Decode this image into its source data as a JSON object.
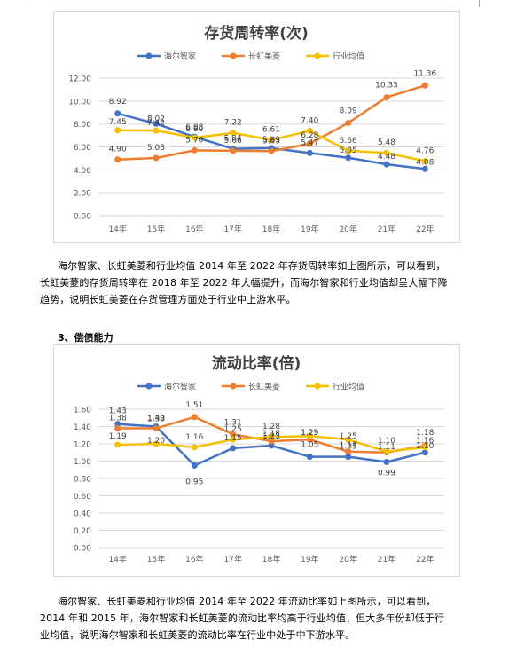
{
  "charts": [
    {
      "id": "inventory",
      "title": "存货周转率(次)",
      "yticks": [
        "0.00",
        "2.00",
        "4.00",
        "6.00",
        "8.00",
        "10.00",
        "12.00"
      ]
    },
    {
      "id": "current",
      "title": "流动比率(倍)",
      "yticks": [
        "0.00",
        "0.20",
        "0.40",
        "0.60",
        "0.80",
        "1.00",
        "1.20",
        "1.40",
        "1.60"
      ]
    }
  ],
  "chart_data": [
    {
      "type": "line",
      "title": "存货周转率(次)",
      "categories": [
        "14年",
        "15年",
        "16年",
        "17年",
        "18年",
        "19年",
        "20年",
        "21年",
        "22年"
      ],
      "ylim": [
        0,
        12
      ],
      "grid": true,
      "legend_position": "top",
      "series": [
        {
          "name": "海尔智家",
          "color": "#4472c4",
          "values": [
            8.92,
            8.02,
            6.88,
            5.84,
            5.89,
            5.47,
            5.05,
            4.48,
            4.08
          ],
          "labels": [
            "8.92",
            "8.02",
            "6.88",
            "5.84",
            "5.89",
            "5.47",
            "5.05",
            "4.48",
            "4.08"
          ]
        },
        {
          "name": "长虹美菱",
          "color": "#ed7d31",
          "values": [
            4.9,
            5.03,
            5.7,
            5.66,
            5.63,
            6.28,
            8.09,
            10.33,
            11.36
          ],
          "labels": [
            "4.90",
            "5.03",
            "5.70",
            "5.66",
            "5.63",
            "6.28",
            "8.09",
            "10.33",
            "11.36"
          ]
        },
        {
          "name": "行业均值",
          "color": "#f5c000",
          "values": [
            7.45,
            7.42,
            6.8,
            7.22,
            6.61,
            7.4,
            5.66,
            5.48,
            4.76
          ],
          "labels": [
            "7.45",
            "7.42",
            "6.80",
            "7.22",
            "6.61",
            "7.40",
            "5.66",
            "5.48",
            "4.76"
          ]
        }
      ]
    },
    {
      "type": "line",
      "title": "流动比率(倍)",
      "categories": [
        "14年",
        "15年",
        "16年",
        "17年",
        "18年",
        "19年",
        "20年",
        "21年",
        "22年"
      ],
      "ylim": [
        0,
        1.6
      ],
      "grid": true,
      "legend_position": "top",
      "series": [
        {
          "name": "海尔智家",
          "color": "#4472c4",
          "values": [
            1.43,
            1.4,
            0.95,
            1.15,
            1.18,
            1.05,
            1.05,
            0.99,
            1.1
          ],
          "labels": [
            "1.43",
            "1.40",
            "0.95",
            "1.15",
            "1.18",
            "1.05",
            "1.05",
            "0.99",
            "1.10"
          ]
        },
        {
          "name": "长虹美菱",
          "color": "#ed7d31",
          "values": [
            1.38,
            1.38,
            1.51,
            1.31,
            1.23,
            1.25,
            1.11,
            1.1,
            1.18
          ],
          "labels": [
            "1.38",
            "1.38",
            "1.51",
            "1.31",
            "1.23",
            "1.25",
            "1.11",
            "1.10",
            "1.18"
          ]
        },
        {
          "name": "行业均值",
          "color": "#f5c000",
          "values": [
            1.19,
            1.2,
            1.16,
            1.25,
            1.28,
            1.29,
            1.25,
            1.11,
            1.16
          ],
          "labels": [
            "1.19",
            "1.20",
            "1.16",
            "1.25",
            "1.28",
            "1.29",
            "1.25",
            "1.11",
            "1.16"
          ]
        }
      ]
    }
  ],
  "text": {
    "para1_line1": "海尔智家、长虹美菱和行业均值 2014 年至 2022 年存货周转率如上图所示，可以看到，",
    "para1_line2": "长虹美菱的存货周转率在 2018 年至 2022 年大幅提升，而海尔智家和行业均值却呈大幅下降",
    "para1_line3": "趋势，说明长虹美菱在存货管理方面处于行业中上游水平。",
    "section3": "3、偿债能力",
    "para2_line1": "海尔智家、长虹美菱和行业均值 2014 年至 2022 年流动比率如上图所示，可以看到，",
    "para2_line2": "2014 年和 2015 年，海尔智家和长虹美菱的流动比率均高于行业均值，但大多年份却低于行",
    "para2_line3": "业均值，说明海尔智家和长虹美菱的流动比率在行业中处于中下游水平。"
  }
}
